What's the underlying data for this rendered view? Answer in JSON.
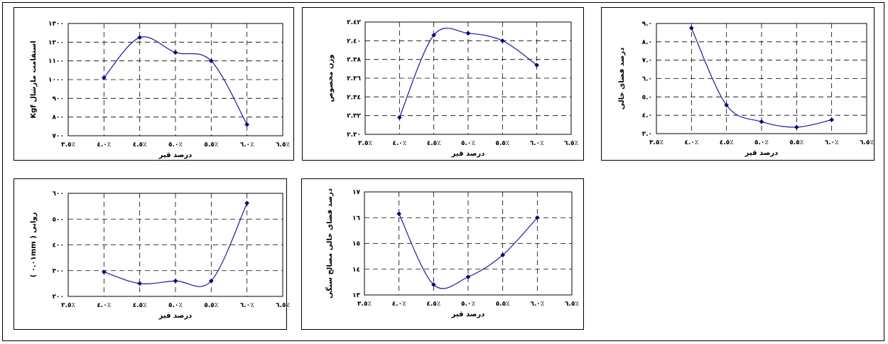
{
  "chart_data": [
    {
      "type": "line",
      "x_tick_labels": [
        "٣.٥٪",
        "٤.٠٪",
        "٤.٥٪",
        "٥.٠٪",
        "٥.٥٪",
        "٦.٠٪",
        "٦.٥٪"
      ],
      "xlim": [
        3.5,
        6.5
      ],
      "ylim": [
        700,
        1300
      ],
      "y_tick_labels": [
        "٧٠٠",
        "٨٠٠",
        "٩٠٠",
        "١٠٠٠",
        "١١٠٠",
        "١٢٠٠",
        "١٣٠٠"
      ],
      "xlabel": "درصد قیر",
      "ylabel": "استقامت مارشال Kgf",
      "x": [
        4.0,
        4.5,
        5.0,
        5.5,
        6.0
      ],
      "y": [
        1010,
        1225,
        1145,
        1100,
        760
      ],
      "grid": true
    },
    {
      "type": "line",
      "x_tick_labels": [
        "٣.٥٪",
        "٤.٠٪",
        "٤.٥٪",
        "٥.٠٪",
        "٥.٥٪",
        "٦.٠٪",
        "٦.٥٪"
      ],
      "xlim": [
        3.5,
        6.5
      ],
      "ylim": [
        2.3,
        2.42
      ],
      "y_tick_labels": [
        "٢.٣٠",
        "٢.٣٢",
        "٢.٣٤",
        "٢.٣٦",
        "٢.٣٨",
        "٢.٤٠",
        "٢.٤٢"
      ],
      "xlabel": "درصد قیر",
      "ylabel": "وزن مخصوص",
      "x": [
        4.0,
        4.5,
        5.0,
        5.5,
        6.0
      ],
      "y": [
        2.318,
        2.406,
        2.408,
        2.4,
        2.374
      ],
      "grid": true
    },
    {
      "type": "line",
      "x_tick_labels": [
        "٣.٥٪",
        "٤.٠٪",
        "٤.٥٪",
        "٥.٠٪",
        "٥.٥٪",
        "٦.٠٪",
        "٦.٥٪"
      ],
      "xlim": [
        3.5,
        6.5
      ],
      "ylim": [
        3.0,
        9.0
      ],
      "y_tick_labels": [
        "٣.٠",
        "٤.٠",
        "٥.٠",
        "٦.٠",
        "٧.٠",
        "٨.٠",
        "٩.٠"
      ],
      "xlabel": "درصد قیر",
      "ylabel": "درصد فضای خالی",
      "x": [
        4.0,
        4.5,
        5.0,
        5.5,
        6.0
      ],
      "y": [
        8.75,
        4.55,
        3.65,
        3.35,
        3.75
      ],
      "grid": true
    },
    {
      "type": "line",
      "x_tick_labels": [
        "٣.٥٪",
        "٤.٠٪",
        "٤.٥٪",
        "٥.٠٪",
        "٥.٥٪",
        "٦.٠٪",
        "٦.٥٪"
      ],
      "xlim": [
        3.5,
        6.5
      ],
      "ylim": [
        200,
        600
      ],
      "y_tick_labels": [
        "٢٠٠",
        "٣٠٠",
        "٤٠٠",
        "٥٠٠",
        "٦٠٠"
      ],
      "xlabel": "درصد قیر",
      "ylabel": "روانی ( ٠.٠١mm )",
      "x": [
        4.0,
        4.5,
        5.0,
        5.5,
        6.0
      ],
      "y": [
        295,
        250,
        260,
        260,
        562
      ],
      "grid": true
    },
    {
      "type": "line",
      "x_tick_labels": [
        "٣.٥٪",
        "٤.٠٪",
        "٤.٥٪",
        "٥.٠٪",
        "٥.٥٪",
        "٦.٠٪",
        "٦.٥٪"
      ],
      "xlim": [
        3.5,
        6.5
      ],
      "ylim": [
        13,
        17
      ],
      "y_tick_labels": [
        "١٣",
        "١٤",
        "١٥",
        "١٦",
        "١٧"
      ],
      "xlabel": "درصد قیر",
      "ylabel": "درصد فضای خالی مصالح سنگی",
      "x": [
        4.0,
        4.5,
        5.0,
        5.5,
        6.0
      ],
      "y": [
        16.15,
        13.4,
        13.7,
        14.55,
        16.0
      ],
      "grid": true
    }
  ]
}
